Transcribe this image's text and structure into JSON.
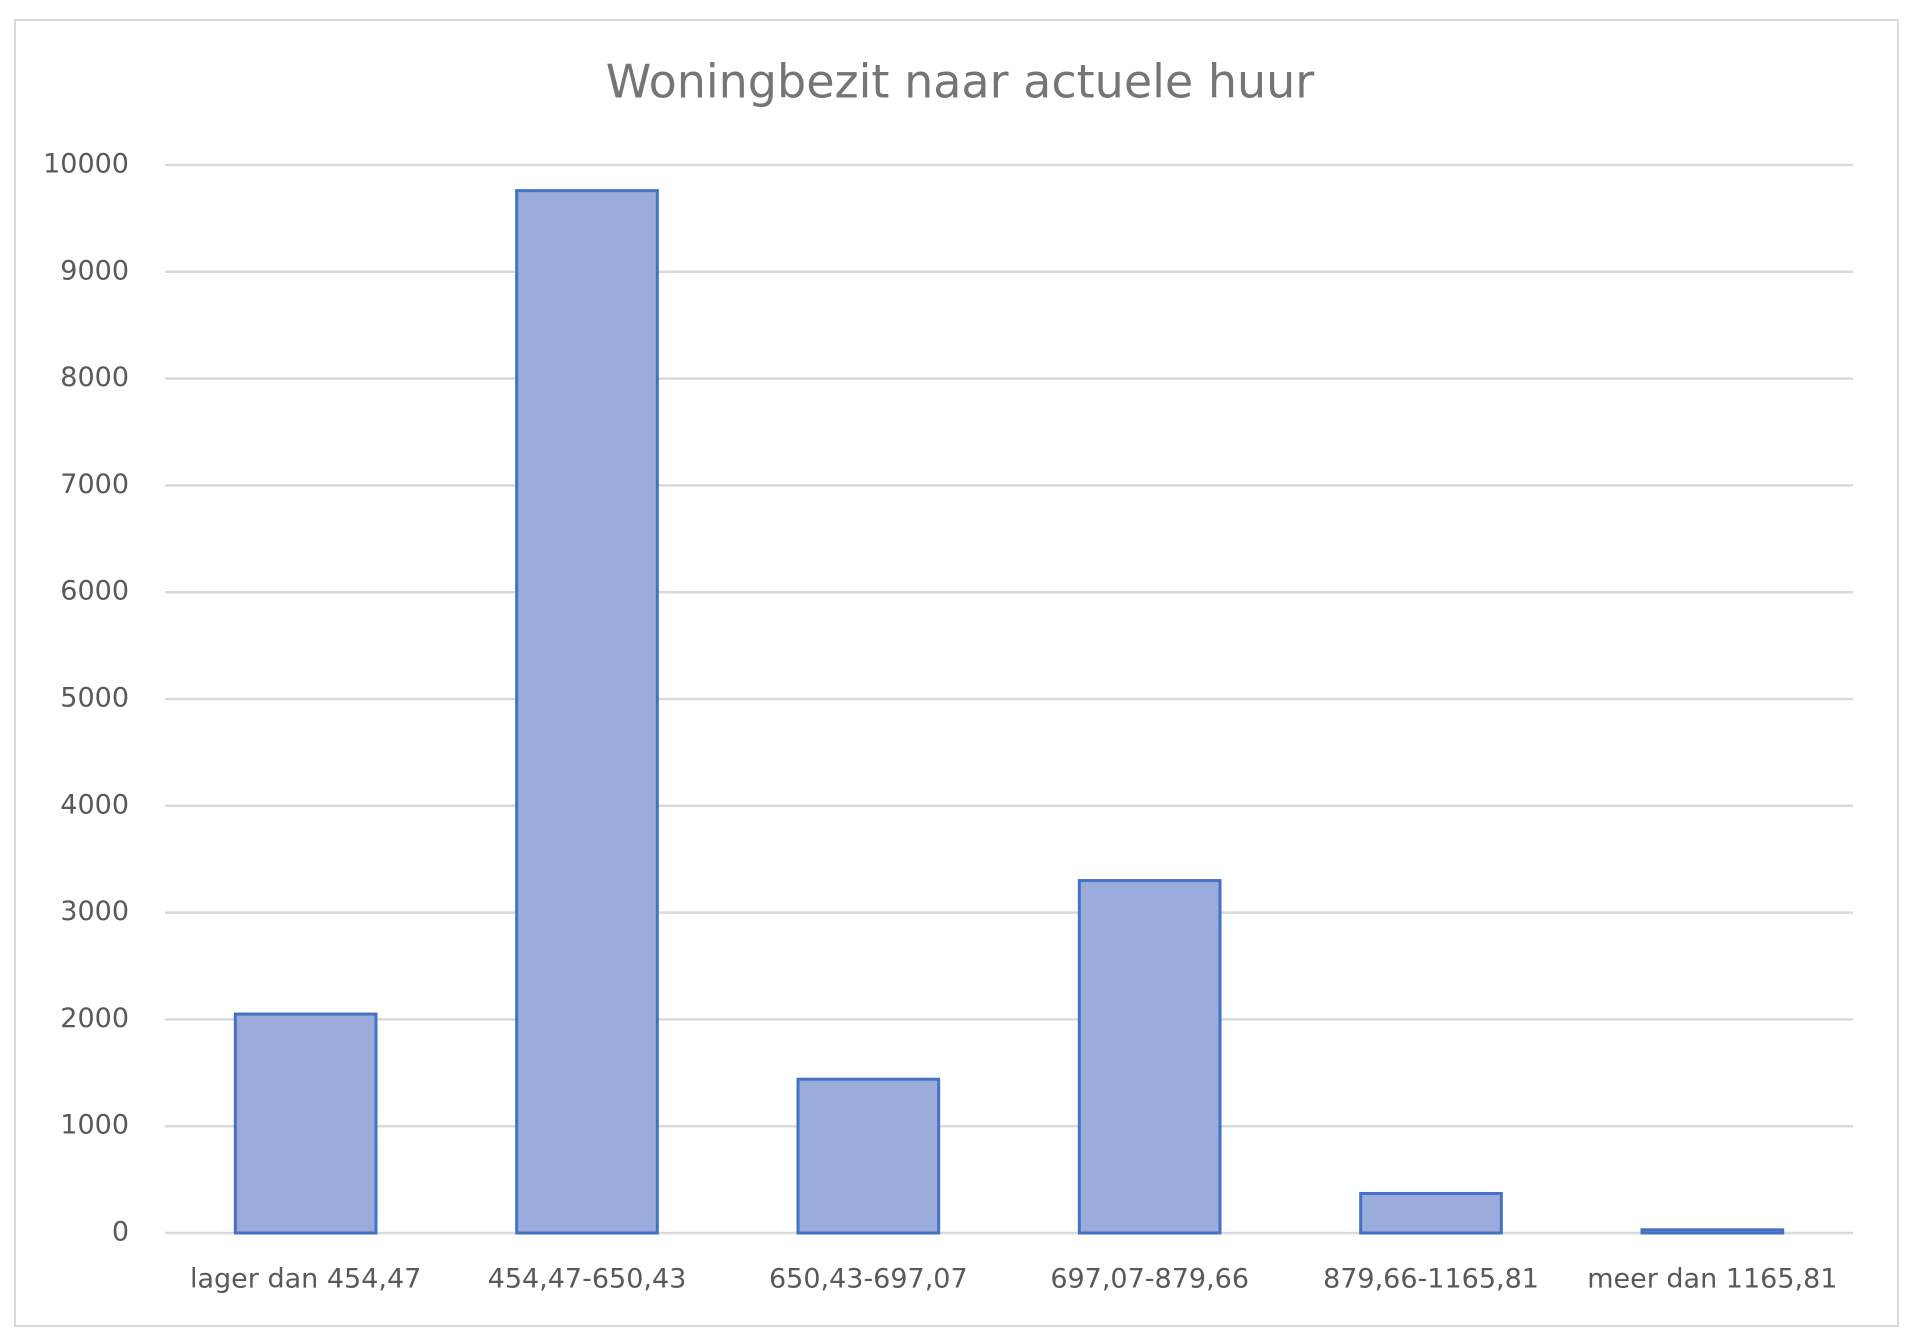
{
  "chart_data": {
    "type": "bar",
    "title": "Woningbezit naar actuele huur",
    "categories": [
      "lager dan 454,47",
      "454,47-650,43",
      "650,43-697,07",
      "697,07-879,66",
      "879,66-1165,81",
      "meer dan 1165,81"
    ],
    "values": [
      2050,
      9760,
      1440,
      3300,
      370,
      30
    ],
    "color": "#9aabdc",
    "border_color": "#4472c4",
    "ylim": [
      0,
      10000
    ],
    "yticks": [
      0,
      1000,
      2000,
      3000,
      4000,
      5000,
      6000,
      7000,
      8000,
      9000,
      10000
    ],
    "grid": true
  }
}
